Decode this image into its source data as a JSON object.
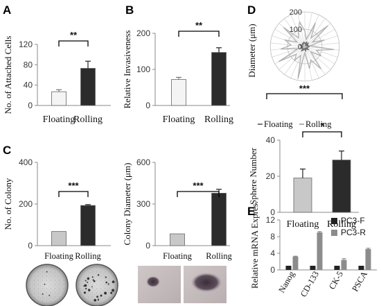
{
  "panels": {
    "A": {
      "letter": "A"
    },
    "B": {
      "letter": "B"
    },
    "C": {
      "letter": "C"
    },
    "D": {
      "letter": "D"
    },
    "E": {
      "letter": "E"
    }
  },
  "legend_D": {
    "floating": "Floating",
    "rolling": "Rolling"
  },
  "colors": {
    "floating_bar": "#f4f4f4",
    "rolling_bar": "#2b2b2b",
    "light_gray": "#c8c8c8",
    "pc3f": "#222222",
    "pc3r": "#8c8c8c",
    "radar_line": "#b0b0b0"
  },
  "chart_data": [
    {
      "id": "A",
      "type": "bar",
      "categories": [
        "Floating",
        "Rolling"
      ],
      "values": [
        27,
        73
      ],
      "errors": [
        4,
        14
      ],
      "ylabel": "No. of Attached Cells",
      "yticks": [
        0,
        40,
        80,
        120
      ],
      "ylim": [
        0,
        120
      ],
      "significance": "**"
    },
    {
      "id": "B",
      "type": "bar",
      "categories": [
        "Floating",
        "Rolling"
      ],
      "values": [
        72,
        147
      ],
      "errors": [
        6,
        13
      ],
      "ylabel": "Relative Invasiveness",
      "yticks": [
        0,
        100,
        200
      ],
      "ylim": [
        0,
        200
      ],
      "significance": "**"
    },
    {
      "id": "C1",
      "type": "bar",
      "categories": [
        "Floating",
        "Rolling"
      ],
      "values": [
        68,
        193
      ],
      "errors": [
        0,
        4
      ],
      "ylabel": "No. of  Colony",
      "yticks": [
        0,
        200,
        400
      ],
      "ylim": [
        0,
        400
      ],
      "significance": "***"
    },
    {
      "id": "C2",
      "type": "bar",
      "categories": [
        "Floating",
        "Rolling"
      ],
      "values": [
        85,
        378
      ],
      "errors": [
        0,
        28
      ],
      "ylabel": "Colony Diameter (μm)",
      "yticks": [
        0,
        300,
        600
      ],
      "ylim": [
        0,
        600
      ],
      "significance": "***"
    },
    {
      "id": "D1",
      "type": "radar",
      "ylabel": "Diameter (μm)",
      "rticks": [
        0,
        100,
        200
      ],
      "rmax": 200,
      "series": [
        {
          "name": "Floating",
          "values": [
            20,
            15,
            30,
            10,
            25,
            18,
            12,
            28,
            22,
            16,
            14,
            26,
            19,
            11,
            24,
            17,
            13,
            21,
            29,
            15,
            18,
            23,
            12,
            20,
            27,
            16,
            14,
            22,
            19,
            25
          ]
        },
        {
          "name": "Rolling",
          "values": [
            90,
            40,
            150,
            60,
            180,
            50,
            120,
            30,
            170,
            70,
            110,
            45,
            160,
            85,
            130,
            35,
            190,
            55,
            100,
            65,
            175,
            40,
            140,
            80,
            120,
            50,
            165,
            60,
            95,
            145
          ]
        }
      ],
      "significance": "***"
    },
    {
      "id": "D2",
      "type": "bar",
      "categories": [
        "Floating",
        "Rolling"
      ],
      "values": [
        19,
        29
      ],
      "errors": [
        5,
        5
      ],
      "ylabel": "Sphere Number",
      "yticks": [
        0,
        20,
        40
      ],
      "ylim": [
        0,
        40
      ],
      "significance": "*"
    },
    {
      "id": "E",
      "type": "bar",
      "categories": [
        "Nanog",
        "CD-133",
        "CK-5",
        "PSCA"
      ],
      "series": [
        {
          "name": "PC3-F",
          "values": [
            1,
            1,
            1,
            1
          ],
          "errors": [
            0,
            0,
            0,
            0
          ]
        },
        {
          "name": "PC3-R",
          "values": [
            3.2,
            9.0,
            2.4,
            5.0
          ],
          "errors": [
            0.1,
            0.2,
            0.3,
            0.2
          ]
        }
      ],
      "ylabel": "Relative mRNA Expres.",
      "yticks": [
        0,
        4,
        8,
        12
      ],
      "ylim": [
        0,
        12
      ]
    }
  ]
}
